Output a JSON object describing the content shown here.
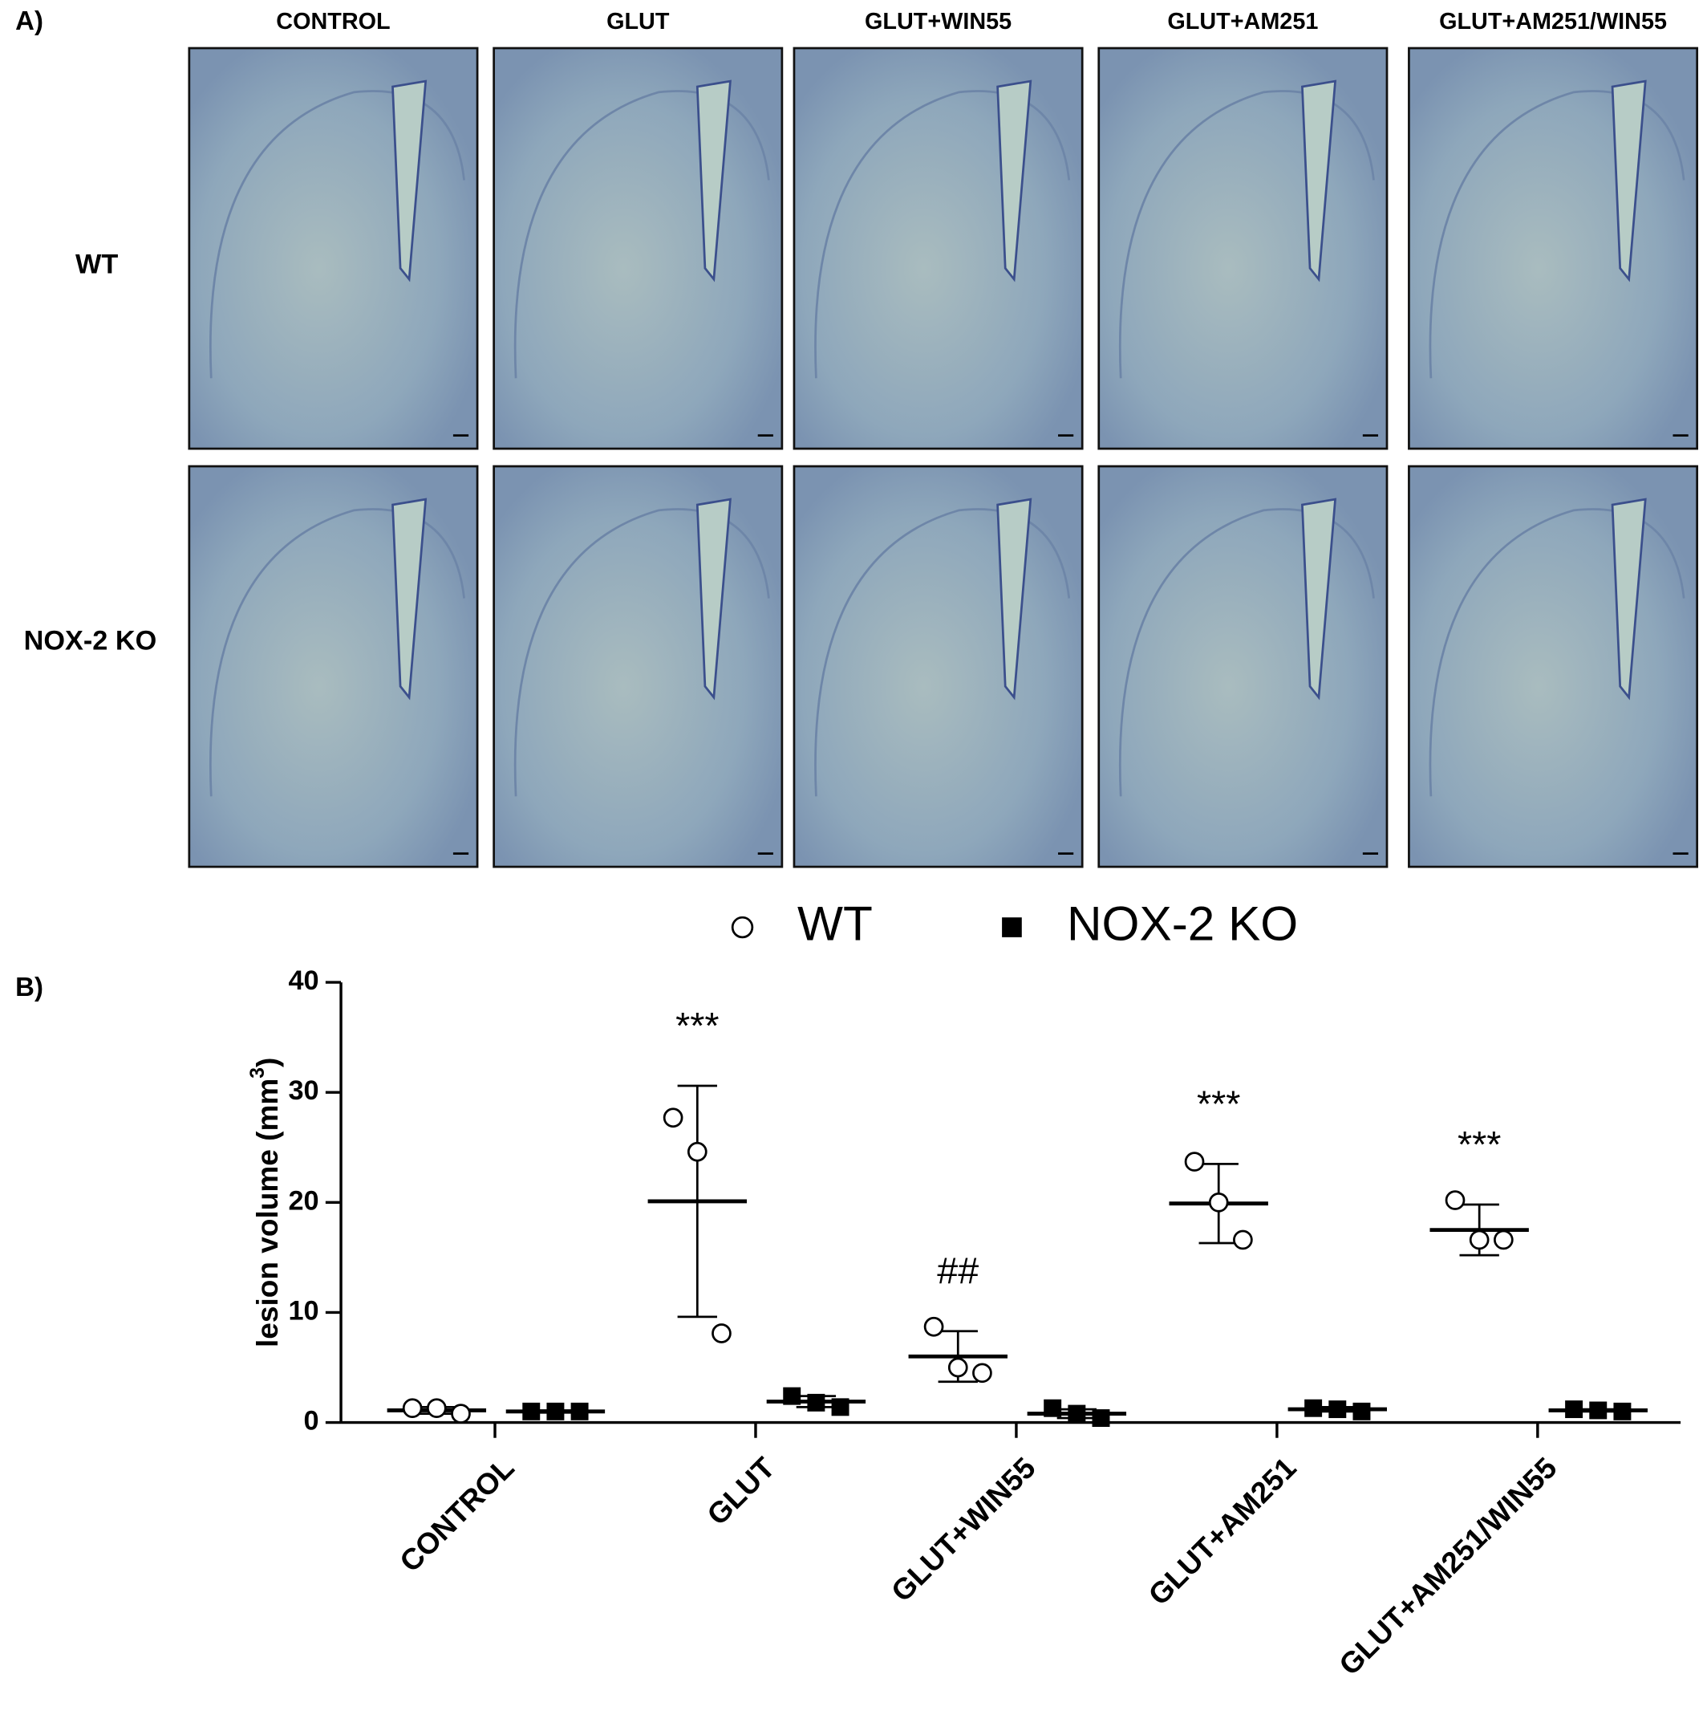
{
  "panel_a": {
    "label": "A)",
    "columns": [
      "CONTROL",
      "GLUT",
      "GLUT+WIN55",
      "GLUT+AM251",
      "GLUT+AM251/WIN55"
    ],
    "rows": [
      "WT",
      "NOX-2 KO"
    ]
  },
  "chart_data": {
    "type": "scatter",
    "panel_label": "B)",
    "ylabel": "lesion volume (mm",
    "ylabel_sup": "3",
    "ylabel_end": ")",
    "categories": [
      "CONTROL",
      "GLUT",
      "GLUT+WIN55",
      "GLUT+AM251",
      "GLUT+AM251/WIN55"
    ],
    "ylim": [
      0,
      40
    ],
    "yticks": [
      0,
      10,
      20,
      30,
      40
    ],
    "series": [
      {
        "name": "WT",
        "color": "#000000",
        "marker": "open-circle",
        "points": [
          [
            1.3,
            1.3,
            0.8
          ],
          [
            27.7,
            24.6,
            8.1
          ],
          [
            8.7,
            5.0,
            4.5
          ],
          [
            23.7,
            20.0,
            16.6
          ],
          [
            20.2,
            16.6,
            16.6
          ]
        ],
        "means": [
          1.1,
          20.1,
          6.0,
          19.9,
          17.5
        ],
        "sds": [
          0.3,
          10.5,
          2.3,
          3.6,
          2.3
        ],
        "annotations": [
          null,
          "***",
          "##",
          "***",
          "***"
        ]
      },
      {
        "name": "NOX-2 KO",
        "color": "#000000",
        "marker": "filled-square",
        "points": [
          [
            1.0,
            1.0,
            1.0
          ],
          [
            2.4,
            1.8,
            1.4
          ],
          [
            1.3,
            0.8,
            0.4
          ],
          [
            1.3,
            1.2,
            1.0
          ],
          [
            1.2,
            1.1,
            1.0
          ]
        ],
        "means": [
          1.0,
          1.9,
          0.8,
          1.2,
          1.1
        ],
        "sds": [
          0.1,
          0.5,
          0.4,
          0.2,
          0.1
        ]
      }
    ]
  }
}
